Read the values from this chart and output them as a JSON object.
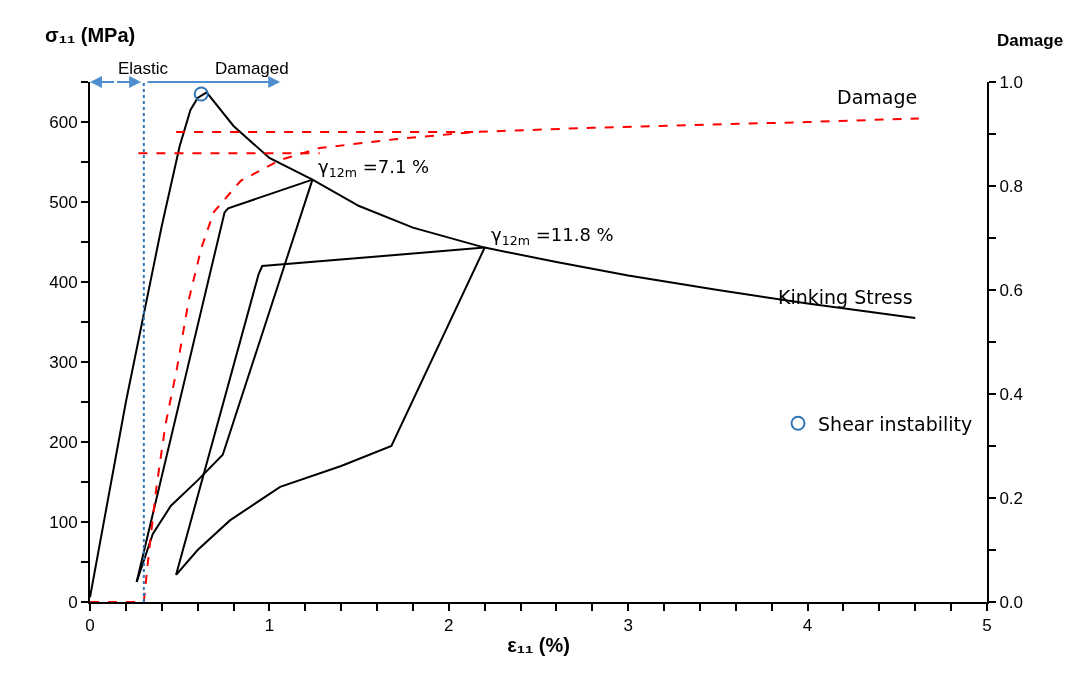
{
  "chart_data": {
    "type": "line",
    "xlabel": "ε₁₁ (%)",
    "ylabel": "σ₁₁ (MPa)",
    "y2label": "Damage",
    "xlim": [
      0,
      5
    ],
    "ylim": [
      0,
      650
    ],
    "y2lim": [
      0,
      1.0
    ],
    "xticks": [
      0,
      {
        "value": 0.2,
        "label": null
      },
      {
        "value": 0.4,
        "label": null
      },
      {
        "value": 0.6,
        "label": null
      },
      {
        "value": 0.8,
        "label": null
      },
      1,
      {
        "value": 1.2,
        "label": null
      },
      {
        "value": 1.4,
        "label": null
      },
      {
        "value": 1.6,
        "label": null
      },
      {
        "value": 1.8,
        "label": null
      },
      2,
      {
        "value": 2.2,
        "label": null
      },
      {
        "value": 2.4,
        "label": null
      },
      {
        "value": 2.6,
        "label": null
      },
      {
        "value": 2.8,
        "label": null
      },
      3,
      {
        "value": 3.2,
        "label": null
      },
      {
        "value": 3.4,
        "label": null
      },
      {
        "value": 3.6,
        "label": null
      },
      {
        "value": 3.8,
        "label": null
      },
      4,
      {
        "value": 4.2,
        "label": null
      },
      {
        "value": 4.4,
        "label": null
      },
      {
        "value": 4.6,
        "label": null
      },
      {
        "value": 4.8,
        "label": null
      },
      5
    ],
    "yticks": [
      0,
      {
        "value": 50,
        "label": null
      },
      100,
      {
        "value": 150,
        "label": null
      },
      200,
      {
        "value": 250,
        "label": null
      },
      300,
      {
        "value": 350,
        "label": null
      },
      400,
      {
        "value": 450,
        "label": null
      },
      500,
      {
        "value": 550,
        "label": null
      },
      600,
      {
        "value": 650,
        "label": null
      }
    ],
    "y2ticks": [
      {
        "value": 0,
        "label": "0.0"
      },
      {
        "value": 0.1,
        "label": null
      },
      {
        "value": 0.2,
        "label": "0.2"
      },
      {
        "value": 0.3,
        "label": null
      },
      {
        "value": 0.4,
        "label": "0.4"
      },
      {
        "value": 0.5,
        "label": null
      },
      {
        "value": 0.6,
        "label": "0.6"
      },
      {
        "value": 0.7,
        "label": null
      },
      {
        "value": 0.8,
        "label": "0.8"
      },
      {
        "value": 0.9,
        "label": null
      },
      {
        "value": 1.0,
        "label": "1.0"
      }
    ],
    "legend": "bottom right",
    "series": [
      {
        "name": "Kinking Stress",
        "color": "#000000",
        "marker": "none",
        "line_style": "solid",
        "x": [
          0,
          0.2,
          0.4,
          0.5,
          0.56,
          0.6,
          0.65,
          0.8,
          1.0,
          1.24,
          1.5,
          1.8,
          2.2,
          2.6,
          3.0,
          3.5,
          4.0,
          4.6
        ],
        "values": [
          6,
          250,
          470,
          570,
          615,
          630,
          637,
          595,
          555,
          528,
          495,
          468,
          443,
          425,
          408,
          390,
          373,
          355
        ]
      },
      {
        "color": "#000000",
        "marker": "none",
        "line_style": "solid",
        "x": [
          0.26,
          0.75,
          0.77,
          1.24
        ],
        "values": [
          25,
          487,
          492,
          528
        ]
      },
      {
        "color": "#000000",
        "marker": "none",
        "line_style": "solid",
        "x": [
          0.26,
          0.35,
          0.45,
          0.6,
          0.74,
          1.24
        ],
        "values": [
          25,
          85,
          120,
          152,
          184,
          528
        ]
      },
      {
        "color": "#000000",
        "marker": "none",
        "line_style": "solid",
        "x": [
          0.48,
          0.94,
          0.96,
          2.2
        ],
        "values": [
          34,
          410,
          420,
          443
        ]
      },
      {
        "color": "#000000",
        "marker": "none",
        "line_style": "solid",
        "x": [
          0.48,
          0.6,
          0.78,
          1.06,
          1.4,
          1.68,
          2.2
        ],
        "values": [
          34,
          65,
          102,
          144,
          170,
          195,
          443
        ]
      },
      {
        "name": "Damage",
        "color": "#ff0000",
        "marker": "none",
        "line_style": "dashed",
        "axis": "y2",
        "x": [
          0,
          0.3,
          0.33,
          0.37,
          0.42,
          0.485,
          0.55,
          0.62,
          0.69,
          0.84,
          1.06,
          1.28,
          1.7,
          2.15,
          2.8,
          3.34,
          4.0,
          4.62
        ],
        "values": [
          0,
          0,
          0.1,
          0.22,
          0.34,
          0.45,
          0.58,
          0.68,
          0.75,
          0.81,
          0.85,
          0.873,
          0.89,
          0.904,
          0.912,
          0.917,
          0.923,
          0.93
        ]
      },
      {
        "color": "#ff0000",
        "marker": "none",
        "line_style": "dashed",
        "axis": "y2",
        "x": [
          0.27,
          1.28
        ],
        "values": [
          0.863,
          0.863
        ]
      },
      {
        "color": "#ff0000",
        "marker": "none",
        "line_style": "dashed",
        "axis": "y2",
        "x": [
          0.48,
          2.15
        ],
        "values": [
          0.904,
          0.904
        ]
      },
      {
        "name": "Shear instability",
        "type": "scatter",
        "color": "#2e75b6",
        "marker": "circle",
        "x": [
          0.62
        ],
        "values": [
          635
        ]
      }
    ],
    "ref_lines": [
      {
        "axis": "x",
        "value": 0.3,
        "color": "#2e75b6",
        "line_style": "dotted"
      }
    ],
    "annotations": [
      "Elastic",
      "Damaged",
      {
        "text": "γ$_{12m}$ =7.1 %",
        "x": 1.24,
        "y": 528
      },
      {
        "text": "γ$_{12m}$ =11.8 %",
        "x": 2.2,
        "y": 443
      }
    ]
  }
}
